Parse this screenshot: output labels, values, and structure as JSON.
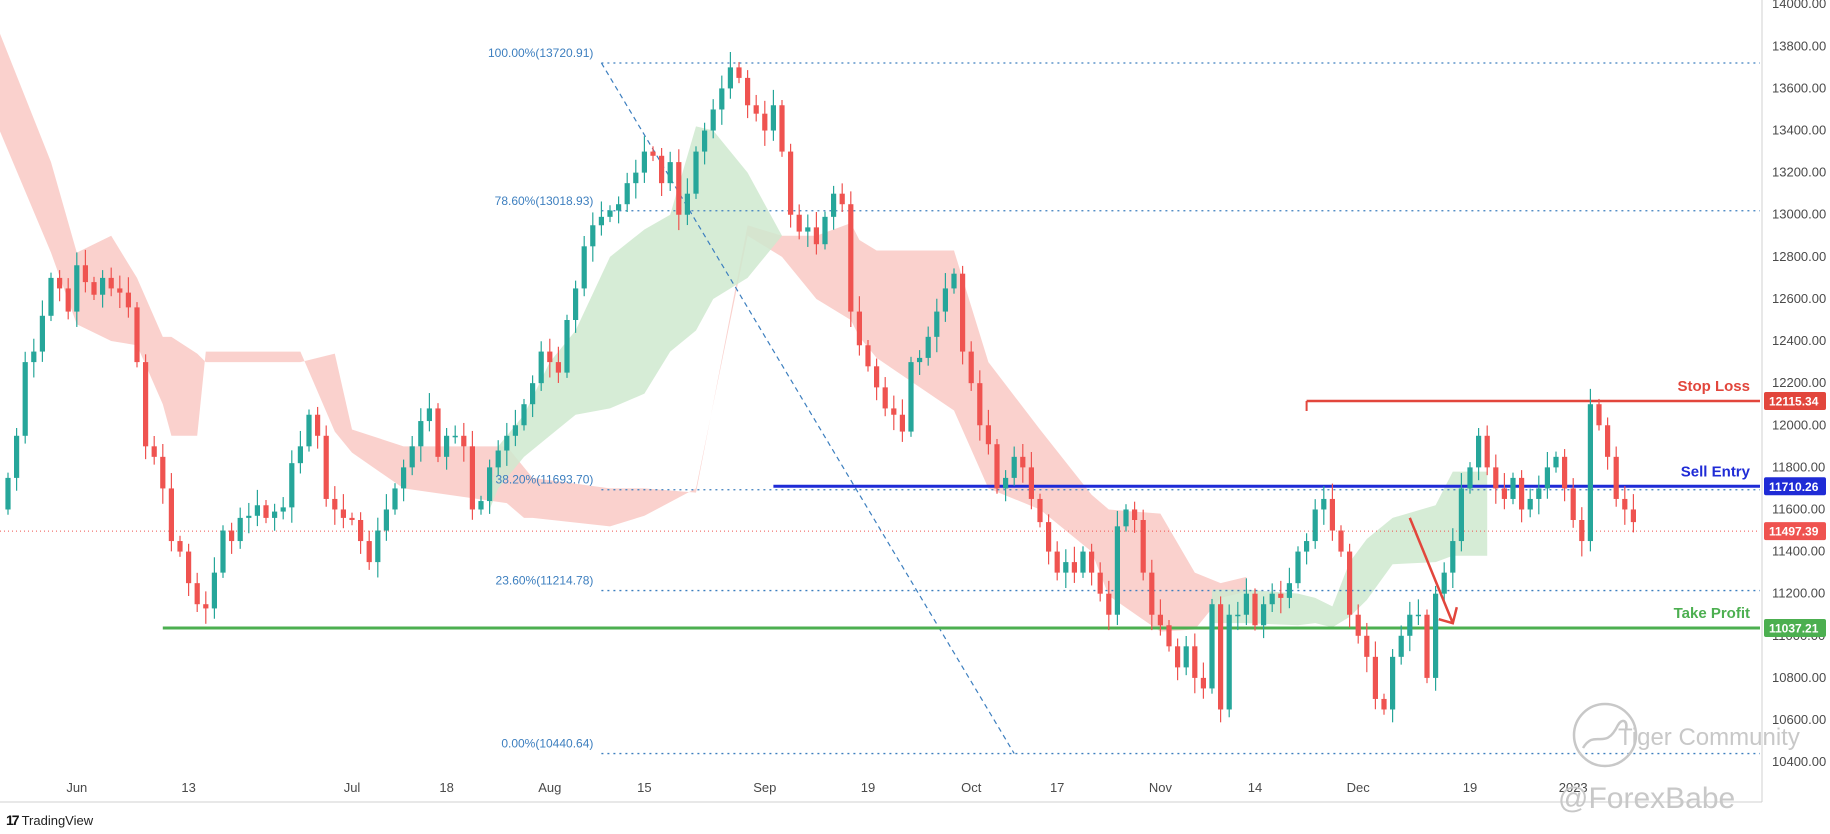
{
  "brand": {
    "name": "TradingView",
    "logo": "17"
  },
  "watermark": {
    "community": "Tiger Community",
    "author": "@ForexBabe"
  },
  "colors": {
    "bull": "#26a69a",
    "bear": "#ef5350",
    "cloud_bear": "#f9c9c4",
    "cloud_bull": "#cfe9cf",
    "fib": "#3d7fbf",
    "stop_loss": "#e2463c",
    "sell_entry": "#1f2bd6",
    "take_profit": "#4caf50",
    "current_price": "#ef5350",
    "arrow": "#e2463c"
  },
  "chart_data": {
    "type": "candlestick",
    "y_axis": {
      "ticks": [
        "14000.00",
        "13800.00",
        "13600.00",
        "13400.00",
        "13200.00",
        "13000.00",
        "12800.00",
        "12600.00",
        "12400.00",
        "12200.00",
        "12000.00",
        "11800.00",
        "11600.00",
        "11400.00",
        "11200.00",
        "11000.00",
        "10800.00",
        "10600.00",
        "10400.00"
      ],
      "range": [
        10220,
        14020
      ]
    },
    "x_axis": {
      "ticks": [
        {
          "label": "Jun",
          "bar": 8
        },
        {
          "label": "13",
          "bar": 21
        },
        {
          "label": "Jul",
          "bar": 40
        },
        {
          "label": "18",
          "bar": 51
        },
        {
          "label": "Aug",
          "bar": 63
        },
        {
          "label": "15",
          "bar": 74
        },
        {
          "label": "Sep",
          "bar": 88
        },
        {
          "label": "19",
          "bar": 100
        },
        {
          "label": "Oct",
          "bar": 112
        },
        {
          "label": "17",
          "bar": 122
        },
        {
          "label": "Nov",
          "bar": 134
        },
        {
          "label": "14",
          "bar": 145
        },
        {
          "label": "Dec",
          "bar": 157
        },
        {
          "label": "19",
          "bar": 170
        },
        {
          "label": "2023",
          "bar": 182
        }
      ]
    },
    "fibonacci": [
      {
        "label": "100.00%(13720.91)",
        "price": 13720.91
      },
      {
        "label": "78.60%(13018.93)",
        "price": 13018.93
      },
      {
        "label": "38.20%(11693.70)",
        "price": 11693.7
      },
      {
        "label": "23.60%(11214.78)",
        "price": 11214.78
      },
      {
        "label": "0.00%(10440.64)",
        "price": 10440.64
      }
    ],
    "levels": {
      "stop_loss": {
        "label": "Stop Loss",
        "price": 12115.34,
        "tag": "12115.34"
      },
      "sell_entry": {
        "label": "Sell Entry",
        "price": 11710.26,
        "tag": "11710.26"
      },
      "take_profit": {
        "label": "Take Profit",
        "price": 11037.21,
        "tag": "11037.21"
      },
      "current": {
        "price": 11497.39,
        "tag": "11497.39"
      }
    },
    "swing_line": {
      "from": {
        "bar": 69,
        "price": 13720.91
      },
      "to": {
        "bar": 117,
        "price": 10440.64
      }
    },
    "forecast_arrow": {
      "from": {
        "bar": 163,
        "price": 11560
      },
      "to": {
        "bar": 168,
        "price": 11060
      }
    },
    "close_anchor": {
      "bar": 0,
      "price": 11600
    },
    "closes": [
      11750,
      11950,
      12300,
      12350,
      12520,
      12700,
      12650,
      12540,
      12760,
      12680,
      12620,
      12700,
      12650,
      12630,
      12560,
      12300,
      11900,
      11850,
      11700,
      11450,
      11400,
      11250,
      11150,
      11130,
      11300,
      11500,
      11450,
      11560,
      11570,
      11620,
      11560,
      11590,
      11610,
      11820,
      11900,
      12050,
      11950,
      11650,
      11600,
      11560,
      11550,
      11450,
      11350,
      11500,
      11600,
      11700,
      11800,
      11900,
      12020,
      12080,
      11850,
      11950,
      11950,
      11900,
      11600,
      11640,
      11800,
      11880,
      11950,
      12000,
      12100,
      12200,
      12350,
      12300,
      12250,
      12500,
      12650,
      12850,
      12950,
      12990,
      13020,
      13050,
      13150,
      13200,
      13300,
      13280,
      13150,
      13250,
      13000,
      13100,
      13300,
      13400,
      13500,
      13600,
      13700,
      13650,
      13520,
      13480,
      13400,
      13520,
      13300,
      13000,
      12920,
      12940,
      12860,
      12990,
      13100,
      13050,
      12540,
      12380,
      12280,
      12180,
      12080,
      12050,
      11970,
      12300,
      12320,
      12420,
      12540,
      12650,
      12720,
      12350,
      12200,
      12000,
      11910,
      11700,
      11750,
      11850,
      11800,
      11650,
      11540,
      11400,
      11300,
      11350,
      11300,
      11400,
      11300,
      11200,
      11100,
      11520,
      11600,
      11550,
      11300,
      11100,
      11050,
      10950,
      10850,
      10950,
      10800,
      10750,
      11150,
      10650,
      11100,
      11100,
      11200,
      11050,
      11150,
      11200,
      11180,
      11250,
      11400,
      11450,
      11600,
      11650,
      11500,
      11400,
      11100,
      11000,
      10900,
      10700,
      10650,
      10900,
      11000,
      11100,
      11100,
      10800,
      11200,
      11300,
      11450,
      11700,
      11800,
      11950,
      11800,
      11700,
      11650,
      11750,
      11600,
      11650,
      11700,
      11800,
      11850,
      11700,
      11550,
      11450,
      12100,
      12000,
      11850,
      11650,
      11600,
      11540
    ],
    "cloud_bear_upper": [
      [
        -2,
        13970
      ],
      [
        5,
        13250
      ],
      [
        8,
        12820
      ],
      [
        12,
        12900
      ],
      [
        15,
        12700
      ],
      [
        18,
        12420
      ],
      [
        19,
        12420
      ],
      [
        22,
        12340
      ],
      [
        23,
        12300
      ],
      [
        34,
        12300
      ],
      [
        38,
        12340
      ],
      [
        40,
        11980
      ],
      [
        46,
        11900
      ],
      [
        58,
        11900
      ],
      [
        60,
        11800
      ],
      [
        61,
        11750
      ],
      [
        70,
        11700
      ],
      [
        74,
        11700
      ],
      [
        80,
        11680
      ],
      [
        86,
        12950
      ],
      [
        90,
        12900
      ],
      [
        94,
        12900
      ],
      [
        98,
        12960
      ],
      [
        99,
        12880
      ],
      [
        101,
        12830
      ],
      [
        110,
        12830
      ],
      [
        114,
        12300
      ],
      [
        120,
        11980
      ],
      [
        126,
        11670
      ],
      [
        128,
        11600
      ],
      [
        134,
        11580
      ],
      [
        138,
        11300
      ],
      [
        141,
        11250
      ],
      [
        144,
        11280
      ]
    ],
    "cloud_bear_lower": [
      [
        -2,
        13500
      ],
      [
        5,
        12820
      ],
      [
        8,
        12480
      ],
      [
        12,
        12400
      ],
      [
        15,
        12380
      ],
      [
        18,
        12100
      ],
      [
        19,
        11950
      ],
      [
        22,
        11950
      ],
      [
        23,
        12350
      ],
      [
        34,
        12350
      ],
      [
        38,
        11970
      ],
      [
        40,
        11870
      ],
      [
        46,
        11700
      ],
      [
        58,
        11630
      ],
      [
        60,
        11560
      ],
      [
        61,
        11560
      ],
      [
        70,
        11520
      ],
      [
        74,
        11570
      ],
      [
        80,
        11700
      ],
      [
        86,
        12900
      ],
      [
        90,
        12800
      ],
      [
        94,
        12600
      ],
      [
        98,
        12500
      ],
      [
        99,
        12420
      ],
      [
        101,
        12320
      ],
      [
        110,
        12070
      ],
      [
        114,
        11700
      ],
      [
        120,
        11600
      ],
      [
        126,
        11400
      ],
      [
        128,
        11190
      ],
      [
        134,
        11020
      ],
      [
        138,
        11030
      ],
      [
        141,
        11180
      ],
      [
        144,
        11210
      ]
    ],
    "cloud_bull_upper": [
      [
        56,
        11650
      ],
      [
        57,
        11900
      ],
      [
        60,
        12050
      ],
      [
        63,
        12300
      ],
      [
        66,
        12450
      ],
      [
        70,
        12800
      ],
      [
        74,
        12930
      ],
      [
        77,
        13000
      ],
      [
        80,
        13420
      ],
      [
        82,
        13400
      ],
      [
        86,
        13200
      ],
      [
        88,
        13050
      ],
      [
        90,
        12900
      ]
    ],
    "cloud_bull_lower": [
      [
        56,
        11600
      ],
      [
        57,
        11700
      ],
      [
        60,
        11850
      ],
      [
        63,
        11950
      ],
      [
        66,
        12050
      ],
      [
        70,
        12080
      ],
      [
        74,
        12150
      ],
      [
        77,
        12350
      ],
      [
        80,
        12450
      ],
      [
        82,
        12600
      ],
      [
        86,
        12700
      ],
      [
        88,
        12800
      ],
      [
        90,
        12900
      ]
    ],
    "cloud_future_upper": [
      [
        140,
        11220
      ],
      [
        144,
        11220
      ],
      [
        150,
        11200
      ],
      [
        152,
        11180
      ],
      [
        154,
        11140
      ],
      [
        156,
        11350
      ],
      [
        158,
        11460
      ],
      [
        161,
        11560
      ],
      [
        166,
        11620
      ],
      [
        168,
        11780
      ],
      [
        172,
        11780
      ]
    ],
    "cloud_future_lower": [
      [
        140,
        11060
      ],
      [
        144,
        11060
      ],
      [
        150,
        11050
      ],
      [
        152,
        11060
      ],
      [
        154,
        11040
      ],
      [
        156,
        11090
      ],
      [
        158,
        11170
      ],
      [
        161,
        11340
      ],
      [
        166,
        11350
      ],
      [
        168,
        11380
      ],
      [
        172,
        11380
      ]
    ]
  }
}
